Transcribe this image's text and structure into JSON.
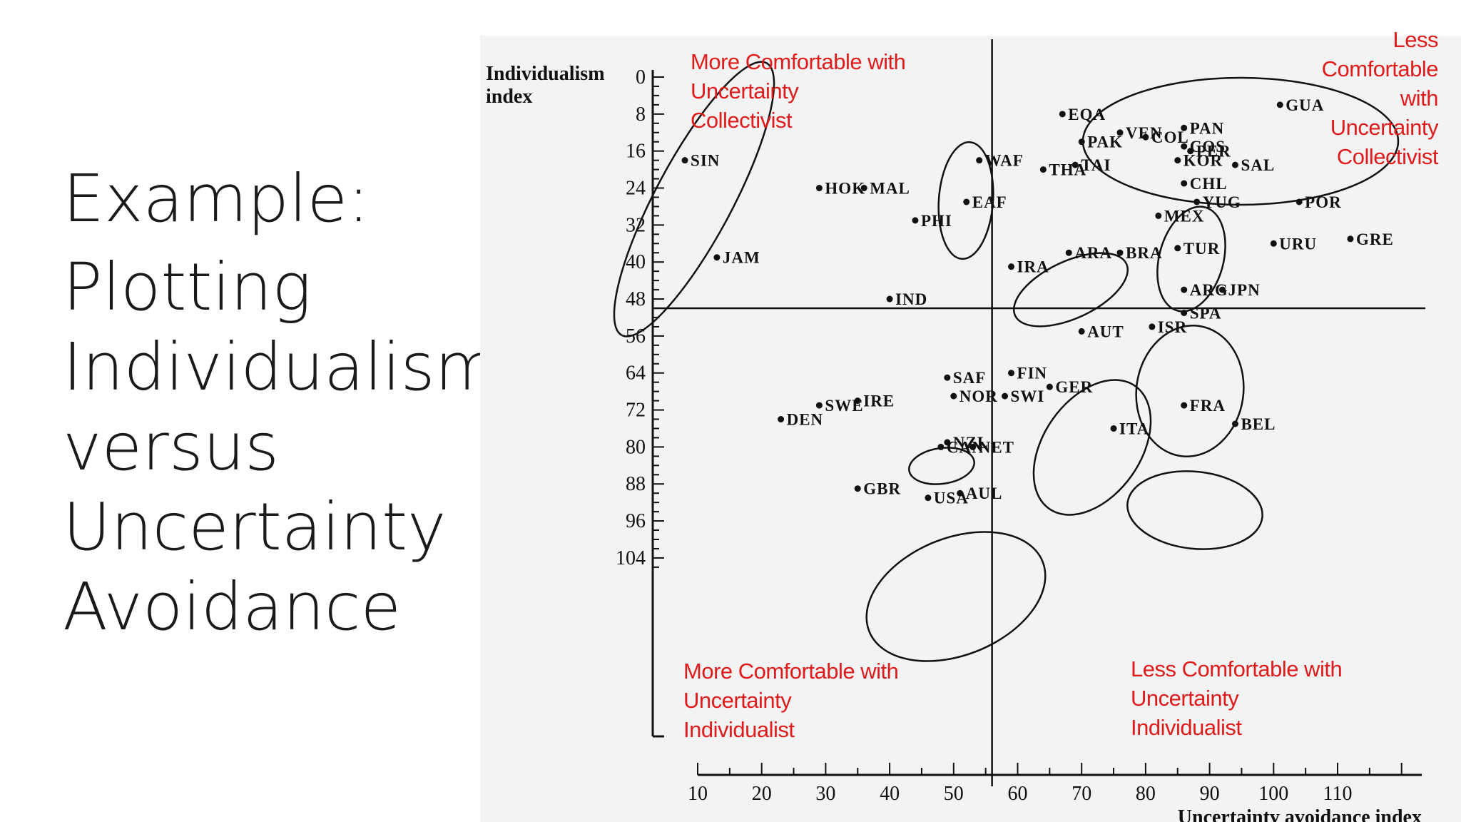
{
  "slide": {
    "title_line1": "Example:",
    "title_rest": "Plotting\nIndividualism\nversus\nUncertainty\nAvoidance"
  },
  "colors": {
    "annotation": "#e01b1b",
    "ink": "#111111",
    "figure_bg": "#f3f3f3"
  },
  "chart_data": {
    "type": "scatter",
    "ylabel": "Individualism\nindex",
    "xlabel": "Uncertainty avoidance index",
    "x_ticks": [
      10,
      20,
      30,
      40,
      50,
      60,
      70,
      80,
      90,
      100,
      110
    ],
    "y_ticks": [
      0,
      8,
      16,
      24,
      32,
      40,
      48,
      56,
      64,
      72,
      80,
      88,
      96,
      104
    ],
    "xlim": [
      10,
      120
    ],
    "ylim": [
      0,
      107
    ],
    "y_inverted": true,
    "divider": {
      "x": 56,
      "y": 50
    },
    "points": [
      {
        "label": "SIN",
        "x": 8,
        "y": 18
      },
      {
        "label": "HOK",
        "x": 29,
        "y": 24
      },
      {
        "label": "MAL",
        "x": 36,
        "y": 24
      },
      {
        "label": "PHI",
        "x": 44,
        "y": 31
      },
      {
        "label": "WAF",
        "x": 54,
        "y": 18
      },
      {
        "label": "EAF",
        "x": 52,
        "y": 27
      },
      {
        "label": "JAM",
        "x": 13,
        "y": 39
      },
      {
        "label": "IND",
        "x": 40,
        "y": 48
      },
      {
        "label": "EQA",
        "x": 67,
        "y": 8
      },
      {
        "label": "VEN",
        "x": 76,
        "y": 12
      },
      {
        "label": "PAK",
        "x": 70,
        "y": 14
      },
      {
        "label": "COL",
        "x": 80,
        "y": 13
      },
      {
        "label": "PAN",
        "x": 86,
        "y": 11
      },
      {
        "label": "COS",
        "x": 86,
        "y": 15
      },
      {
        "label": "PER",
        "x": 87,
        "y": 16
      },
      {
        "label": "TAI",
        "x": 69,
        "y": 19
      },
      {
        "label": "KOR",
        "x": 85,
        "y": 18
      },
      {
        "label": "THA",
        "x": 64,
        "y": 20
      },
      {
        "label": "CHL",
        "x": 86,
        "y": 23
      },
      {
        "label": "SAL",
        "x": 94,
        "y": 19
      },
      {
        "label": "GUA",
        "x": 101,
        "y": 6
      },
      {
        "label": "POR",
        "x": 104,
        "y": 27
      },
      {
        "label": "MEX",
        "x": 82,
        "y": 30
      },
      {
        "label": "YUG",
        "x": 88,
        "y": 27
      },
      {
        "label": "URU",
        "x": 100,
        "y": 36
      },
      {
        "label": "GRE",
        "x": 112,
        "y": 35
      },
      {
        "label": "TUR",
        "x": 85,
        "y": 37
      },
      {
        "label": "ARA",
        "x": 68,
        "y": 38
      },
      {
        "label": "IRA",
        "x": 59,
        "y": 41
      },
      {
        "label": "BRA",
        "x": 76,
        "y": 38
      },
      {
        "label": "ARG",
        "x": 86,
        "y": 46
      },
      {
        "label": "JPN",
        "x": 92,
        "y": 46
      },
      {
        "label": "SPA",
        "x": 86,
        "y": 51
      },
      {
        "label": "ISR",
        "x": 81,
        "y": 54
      },
      {
        "label": "AUT",
        "x": 70,
        "y": 55
      },
      {
        "label": "FIN",
        "x": 59,
        "y": 64
      },
      {
        "label": "GER",
        "x": 65,
        "y": 67
      },
      {
        "label": "SWI",
        "x": 58,
        "y": 69
      },
      {
        "label": "SAF",
        "x": 49,
        "y": 65
      },
      {
        "label": "SWE",
        "x": 29,
        "y": 71
      },
      {
        "label": "IRE",
        "x": 35,
        "y": 70
      },
      {
        "label": "NOR",
        "x": 50,
        "y": 69
      },
      {
        "label": "DEN",
        "x": 23,
        "y": 74
      },
      {
        "label": "FRA",
        "x": 86,
        "y": 71
      },
      {
        "label": "ITA",
        "x": 75,
        "y": 76
      },
      {
        "label": "BEL",
        "x": 94,
        "y": 75
      },
      {
        "label": "NET",
        "x": 53,
        "y": 80
      },
      {
        "label": "CAN",
        "x": 48,
        "y": 80
      },
      {
        "label": "NZL",
        "x": 49,
        "y": 79
      },
      {
        "label": "GBR",
        "x": 35,
        "y": 89
      },
      {
        "label": "AUL",
        "x": 51,
        "y": 90
      },
      {
        "label": "USA",
        "x": 46,
        "y": 91
      }
    ]
  },
  "annotations": {
    "top_left": "More Comfortable with\nUncertainty\nCollectivist",
    "top_right": "Less\nComfortable\nwith\nUncertainty\nCollectivist",
    "bottom_left": "More Comfortable with\nUncertainty\nIndividualist",
    "bottom_right": "Less Comfortable with\nUncertainty\nIndividualist"
  }
}
